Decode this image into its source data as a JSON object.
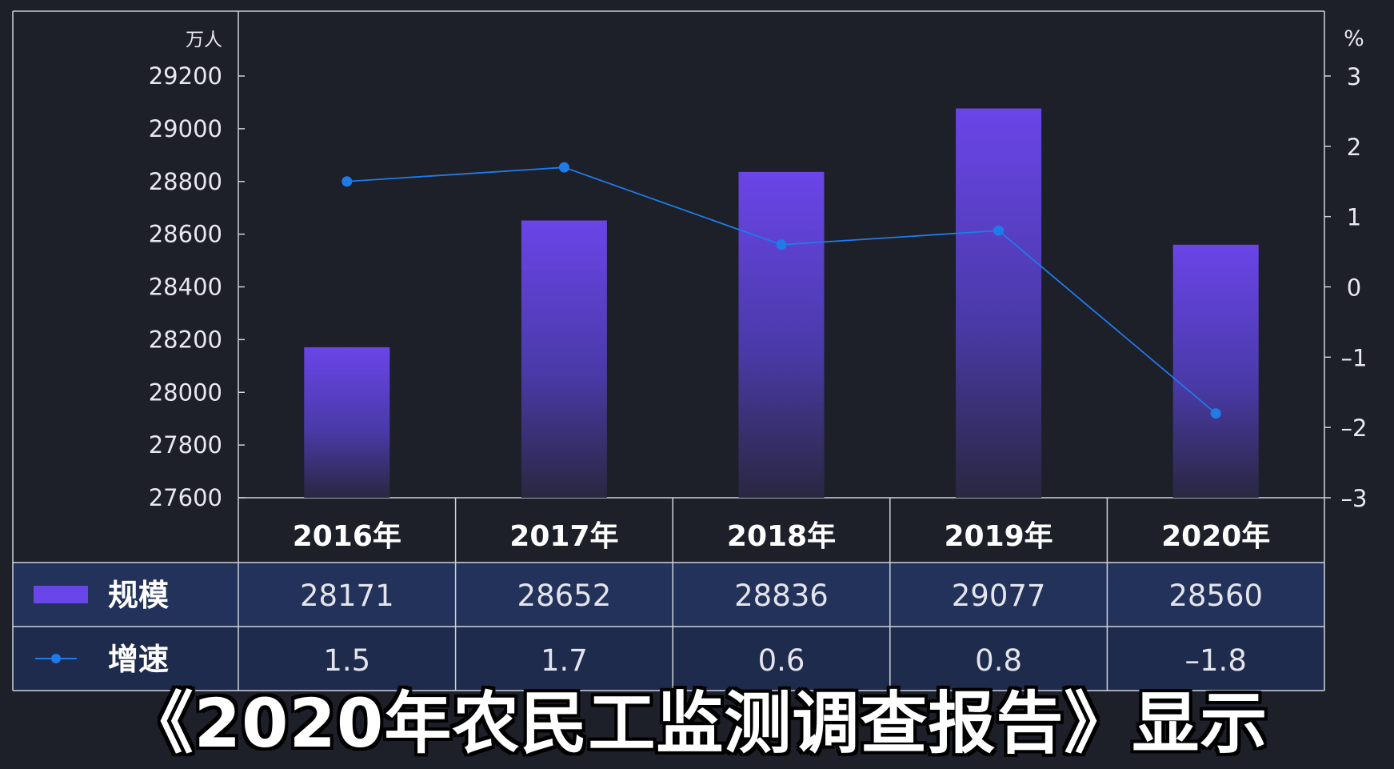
{
  "caption": "《2020年农民工监测调查报告》显示",
  "chart_data": {
    "type": "bar",
    "categories": [
      "2016年",
      "2017年",
      "2018年",
      "2019年",
      "2020年"
    ],
    "series": [
      {
        "name": "规模",
        "type": "bar",
        "axis": "left",
        "values": [
          28171,
          28652,
          28836,
          29077,
          28560
        ]
      },
      {
        "name": "增速",
        "type": "line",
        "axis": "right",
        "values": [
          1.5,
          1.7,
          0.6,
          0.8,
          -1.8
        ]
      }
    ],
    "table_values": {
      "规模": [
        "28171",
        "28652",
        "28836",
        "29077",
        "28560"
      ],
      "增速": [
        "1.5",
        "1.7",
        "0.6",
        "0.8",
        "–1.8"
      ]
    },
    "y_left": {
      "unit": "万人",
      "ylim": [
        27600,
        29200
      ],
      "ticks": [
        "29200",
        "29000",
        "28800",
        "28600",
        "28400",
        "28200",
        "28000",
        "27800",
        "27600"
      ]
    },
    "y_right": {
      "unit": "%",
      "ylim": [
        -3,
        3
      ],
      "ticks": [
        "3",
        "2",
        "1",
        "0",
        "–1",
        "–2",
        "–3"
      ]
    },
    "colors": {
      "bar_top": "#6a45e8",
      "bar_bottom": "#2a2740",
      "line": "#1f7be8",
      "table_row": "#23325a",
      "grid": "#cfd2dc"
    },
    "grid": false,
    "legend": "table"
  }
}
